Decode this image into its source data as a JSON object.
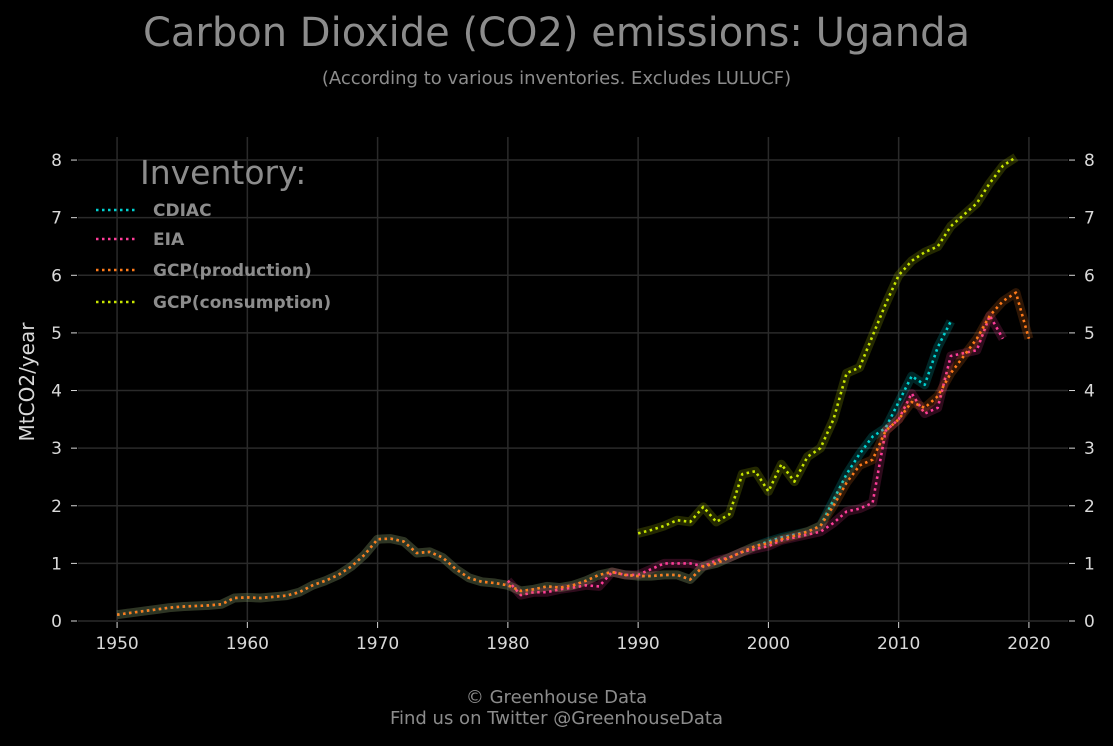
{
  "chart_data": {
    "type": "line",
    "title": "Carbon Dioxide (CO2) emissions: Uganda",
    "subtitle": "(According to various inventories. Excludes LULUCF)",
    "ylabel": "MtCO2/year",
    "xlabel": "",
    "xlim": [
      1947,
      2023
    ],
    "ylim": [
      0,
      8.4
    ],
    "x_ticks": [
      1950,
      1960,
      1970,
      1980,
      1990,
      2000,
      2010,
      2020
    ],
    "y_ticks": [
      0,
      1,
      2,
      3,
      4,
      5,
      6,
      7,
      8
    ],
    "grid": true,
    "legend_title": "Inventory:",
    "legend_position": "top-left",
    "series": [
      {
        "name": "CDIAC",
        "color": "#00d0d0",
        "x": [
          1950,
          1951,
          1952,
          1953,
          1954,
          1955,
          1956,
          1957,
          1958,
          1959,
          1960,
          1961,
          1962,
          1963,
          1964,
          1965,
          1966,
          1967,
          1968,
          1969,
          1970,
          1971,
          1972,
          1973,
          1974,
          1975,
          1976,
          1977,
          1978,
          1979,
          1980,
          1981,
          1982,
          1983,
          1984,
          1985,
          1986,
          1987,
          1988,
          1989,
          1990,
          1991,
          1992,
          1993,
          1994,
          1995,
          1996,
          1997,
          1998,
          1999,
          2000,
          2001,
          2002,
          2003,
          2004,
          2005,
          2006,
          2007,
          2008,
          2009,
          2010,
          2011,
          2012,
          2013,
          2014
        ],
        "values": [
          0.11,
          0.14,
          0.17,
          0.2,
          0.23,
          0.25,
          0.26,
          0.27,
          0.29,
          0.4,
          0.41,
          0.4,
          0.42,
          0.44,
          0.5,
          0.62,
          0.7,
          0.8,
          0.95,
          1.15,
          1.42,
          1.43,
          1.38,
          1.18,
          1.2,
          1.1,
          0.9,
          0.75,
          0.68,
          0.66,
          0.62,
          0.52,
          0.55,
          0.6,
          0.58,
          0.62,
          0.7,
          0.8,
          0.85,
          0.8,
          0.78,
          0.78,
          0.8,
          0.8,
          0.72,
          0.95,
          1.0,
          1.1,
          1.2,
          1.3,
          1.38,
          1.45,
          1.5,
          1.55,
          1.65,
          2.1,
          2.55,
          2.9,
          3.2,
          3.35,
          3.8,
          4.25,
          4.1,
          4.75,
          5.2
        ]
      },
      {
        "name": "EIA",
        "color": "#ff3d9a",
        "x": [
          1980,
          1981,
          1982,
          1983,
          1984,
          1985,
          1986,
          1987,
          1988,
          1989,
          1990,
          1991,
          1992,
          1993,
          1994,
          1995,
          1996,
          1997,
          1998,
          1999,
          2000,
          2001,
          2002,
          2003,
          2004,
          2005,
          2006,
          2007,
          2008,
          2009,
          2010,
          2011,
          2012,
          2013,
          2014,
          2015,
          2016,
          2017,
          2018
        ],
        "values": [
          0.7,
          0.45,
          0.5,
          0.5,
          0.55,
          0.58,
          0.62,
          0.6,
          0.85,
          0.8,
          0.8,
          0.9,
          1.0,
          1.0,
          1.0,
          0.95,
          1.05,
          1.1,
          1.2,
          1.25,
          1.3,
          1.4,
          1.45,
          1.5,
          1.55,
          1.7,
          1.9,
          1.95,
          2.05,
          3.3,
          3.5,
          3.95,
          3.6,
          3.7,
          4.6,
          4.65,
          4.7,
          5.3,
          4.9
        ]
      },
      {
        "name": "GCP(production)",
        "color": "#ff7a1a",
        "x": [
          1950,
          1951,
          1952,
          1953,
          1954,
          1955,
          1956,
          1957,
          1958,
          1959,
          1960,
          1961,
          1962,
          1963,
          1964,
          1965,
          1966,
          1967,
          1968,
          1969,
          1970,
          1971,
          1972,
          1973,
          1974,
          1975,
          1976,
          1977,
          1978,
          1979,
          1980,
          1981,
          1982,
          1983,
          1984,
          1985,
          1986,
          1987,
          1988,
          1989,
          1990,
          1991,
          1992,
          1993,
          1994,
          1995,
          1996,
          1997,
          1998,
          1999,
          2000,
          2001,
          2002,
          2003,
          2004,
          2005,
          2006,
          2007,
          2008,
          2009,
          2010,
          2011,
          2012,
          2013,
          2014,
          2015,
          2016,
          2017,
          2018,
          2019,
          2020
        ],
        "values": [
          0.11,
          0.14,
          0.17,
          0.2,
          0.23,
          0.25,
          0.26,
          0.27,
          0.29,
          0.4,
          0.41,
          0.4,
          0.42,
          0.44,
          0.5,
          0.62,
          0.7,
          0.8,
          0.95,
          1.15,
          1.42,
          1.43,
          1.38,
          1.18,
          1.2,
          1.1,
          0.9,
          0.75,
          0.68,
          0.66,
          0.62,
          0.52,
          0.55,
          0.6,
          0.58,
          0.62,
          0.7,
          0.8,
          0.85,
          0.8,
          0.78,
          0.78,
          0.8,
          0.8,
          0.72,
          0.95,
          1.0,
          1.1,
          1.2,
          1.3,
          1.35,
          1.42,
          1.48,
          1.55,
          1.65,
          2.0,
          2.4,
          2.7,
          2.8,
          3.3,
          3.5,
          3.8,
          3.7,
          3.9,
          4.3,
          4.6,
          4.9,
          5.3,
          5.55,
          5.7,
          4.9
        ]
      },
      {
        "name": "GCP(consumption)",
        "color": "#c8e600",
        "x": [
          1990,
          1991,
          1992,
          1993,
          1994,
          1995,
          1996,
          1997,
          1998,
          1999,
          2000,
          2001,
          2002,
          2003,
          2004,
          2005,
          2006,
          2007,
          2008,
          2009,
          2010,
          2011,
          2012,
          2013,
          2014,
          2015,
          2016,
          2017,
          2018,
          2019
        ],
        "values": [
          1.52,
          1.58,
          1.65,
          1.75,
          1.72,
          1.98,
          1.72,
          1.85,
          2.55,
          2.6,
          2.25,
          2.72,
          2.42,
          2.85,
          3.0,
          3.5,
          4.3,
          4.4,
          4.95,
          5.5,
          6.0,
          6.25,
          6.4,
          6.5,
          6.85,
          7.05,
          7.25,
          7.6,
          7.9,
          8.05
        ]
      }
    ]
  },
  "footer": {
    "credit_line1": "© Greenhouse Data",
    "credit_line2": "Find us on Twitter @GreenhouseData"
  }
}
